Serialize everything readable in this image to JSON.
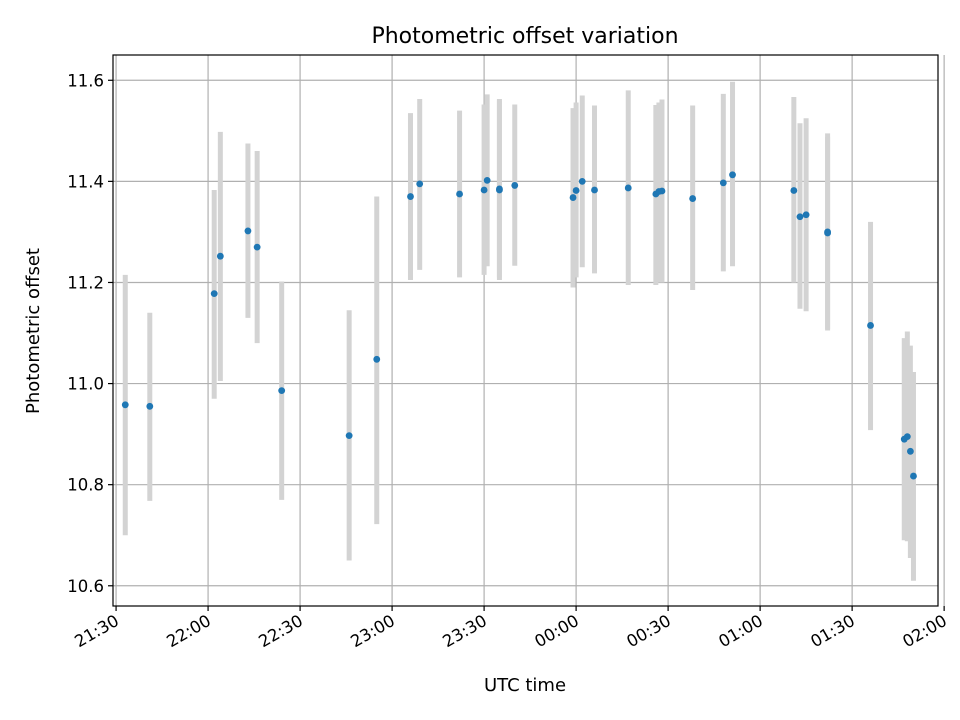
{
  "chart_data": {
    "type": "scatter",
    "title": "Photometric offset variation",
    "xlabel": "UTC time",
    "ylabel": "Photometric offset",
    "x_unit": "time (HH:MM UTC)",
    "xlim": [
      "21:29",
      "01:58"
    ],
    "ylim": [
      10.56,
      11.65
    ],
    "grid": true,
    "x_ticks": [
      "21:30",
      "22:00",
      "22:30",
      "23:00",
      "23:30",
      "00:00",
      "00:30",
      "01:00",
      "01:30",
      "02:00"
    ],
    "y_ticks": [
      "10.6",
      "10.8",
      "11.0",
      "11.2",
      "11.4",
      "11.6"
    ],
    "colors": {
      "points": "#1f77b4",
      "error_bars": "#d3d3d3",
      "grid": "#b0b0b0"
    },
    "points": [
      {
        "x": "21:33",
        "y": 10.958,
        "ymin": 10.7,
        "ymax": 11.215
      },
      {
        "x": "21:41",
        "y": 10.955,
        "ymin": 10.768,
        "ymax": 11.14
      },
      {
        "x": "22:02",
        "y": 11.178,
        "ymin": 10.97,
        "ymax": 11.383
      },
      {
        "x": "22:04",
        "y": 11.252,
        "ymin": 11.005,
        "ymax": 11.498
      },
      {
        "x": "22:13",
        "y": 11.302,
        "ymin": 11.13,
        "ymax": 11.475
      },
      {
        "x": "22:16",
        "y": 11.27,
        "ymin": 11.08,
        "ymax": 11.46
      },
      {
        "x": "22:24",
        "y": 10.986,
        "ymin": 10.77,
        "ymax": 11.202
      },
      {
        "x": "22:46",
        "y": 10.897,
        "ymin": 10.65,
        "ymax": 11.145
      },
      {
        "x": "22:55",
        "y": 11.048,
        "ymin": 10.722,
        "ymax": 11.37
      },
      {
        "x": "23:06",
        "y": 11.37,
        "ymin": 11.205,
        "ymax": 11.535
      },
      {
        "x": "23:09",
        "y": 11.395,
        "ymin": 11.225,
        "ymax": 11.563
      },
      {
        "x": "23:22",
        "y": 11.375,
        "ymin": 11.21,
        "ymax": 11.54
      },
      {
        "x": "23:30",
        "y": 11.383,
        "ymin": 11.215,
        "ymax": 11.552
      },
      {
        "x": "23:31",
        "y": 11.402,
        "ymin": 11.232,
        "ymax": 11.572
      },
      {
        "x": "23:35",
        "y": 11.385,
        "ymin": 11.21,
        "ymax": 11.563
      },
      {
        "x": "23:35",
        "y": 11.383,
        "ymin": 11.205,
        "ymax": 11.56
      },
      {
        "x": "23:40",
        "y": 11.392,
        "ymin": 11.233,
        "ymax": 11.552
      },
      {
        "x": "23:59",
        "y": 11.368,
        "ymin": 11.19,
        "ymax": 11.545
      },
      {
        "x": "00:00",
        "y": 11.382,
        "ymin": 11.21,
        "ymax": 11.556
      },
      {
        "x": "00:02",
        "y": 11.4,
        "ymin": 11.23,
        "ymax": 11.57
      },
      {
        "x": "00:06",
        "y": 11.383,
        "ymin": 11.218,
        "ymax": 11.55
      },
      {
        "x": "00:17",
        "y": 11.387,
        "ymin": 11.195,
        "ymax": 11.58
      },
      {
        "x": "00:26",
        "y": 11.375,
        "ymin": 11.195,
        "ymax": 11.551
      },
      {
        "x": "00:27",
        "y": 11.38,
        "ymin": 11.2,
        "ymax": 11.556
      },
      {
        "x": "00:28",
        "y": 11.381,
        "ymin": 11.2,
        "ymax": 11.562
      },
      {
        "x": "00:38",
        "y": 11.366,
        "ymin": 11.185,
        "ymax": 11.55
      },
      {
        "x": "00:48",
        "y": 11.397,
        "ymin": 11.222,
        "ymax": 11.573
      },
      {
        "x": "00:51",
        "y": 11.413,
        "ymin": 11.232,
        "ymax": 11.597
      },
      {
        "x": "01:11",
        "y": 11.382,
        "ymin": 11.2,
        "ymax": 11.567
      },
      {
        "x": "01:13",
        "y": 11.33,
        "ymin": 11.148,
        "ymax": 11.515
      },
      {
        "x": "01:15",
        "y": 11.334,
        "ymin": 11.143,
        "ymax": 11.525
      },
      {
        "x": "01:22",
        "y": 11.298,
        "ymin": 11.108,
        "ymax": 11.488
      },
      {
        "x": "01:22",
        "y": 11.3,
        "ymin": 11.105,
        "ymax": 11.495
      },
      {
        "x": "01:36",
        "y": 11.115,
        "ymin": 10.908,
        "ymax": 11.32
      },
      {
        "x": "01:47",
        "y": 10.89,
        "ymin": 10.69,
        "ymax": 11.09
      },
      {
        "x": "01:48",
        "y": 10.895,
        "ymin": 10.688,
        "ymax": 11.103
      },
      {
        "x": "01:49",
        "y": 10.866,
        "ymin": 10.655,
        "ymax": 11.075
      },
      {
        "x": "01:50",
        "y": 10.817,
        "ymin": 10.61,
        "ymax": 11.023
      }
    ]
  }
}
